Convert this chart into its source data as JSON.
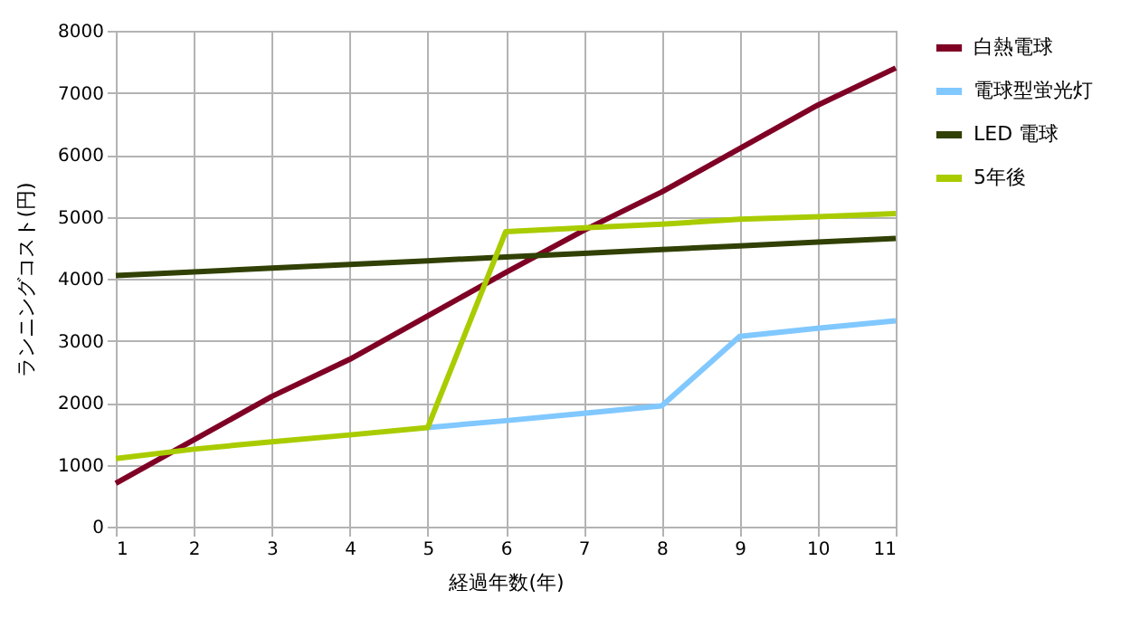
{
  "chart_data": {
    "type": "line",
    "xlabel": "経過年数(年)",
    "ylabel": "ランニングコスト(円)",
    "x": [
      1,
      2,
      3,
      4,
      5,
      6,
      7,
      8,
      9,
      10,
      11
    ],
    "series": [
      {
        "name": "白熱電球",
        "color": "#7f0025",
        "values": [
          700,
          1400,
          2100,
          2700,
          3400,
          4100,
          4780,
          5400,
          6100,
          6800,
          7400
        ]
      },
      {
        "name": "電球型蛍光灯",
        "color": "#80c8ff",
        "values": [
          null,
          null,
          null,
          null,
          1600,
          1710,
          1830,
          1950,
          3070,
          3200,
          3320
        ]
      },
      {
        "name": "LED 電球",
        "color": "#314004",
        "values": [
          4050,
          4110,
          4170,
          4230,
          4290,
          4350,
          4410,
          4470,
          4530,
          4590,
          4650
        ]
      },
      {
        "name": "5年後",
        "color": "#a8cc00",
        "values": [
          1100,
          1250,
          1370,
          1480,
          1600,
          4760,
          4820,
          4880,
          4960,
          5000,
          5050
        ]
      }
    ],
    "xlim": [
      1,
      11
    ],
    "xticks": [
      1,
      2,
      3,
      4,
      5,
      6,
      7,
      8,
      9,
      10,
      11
    ],
    "ylim": [
      0,
      8000
    ],
    "yticks": [
      0,
      1000,
      2000,
      3000,
      4000,
      5000,
      6000,
      7000,
      8000
    ],
    "grid": true,
    "legend": "right",
    "marker": "none",
    "line_style": "solid"
  }
}
